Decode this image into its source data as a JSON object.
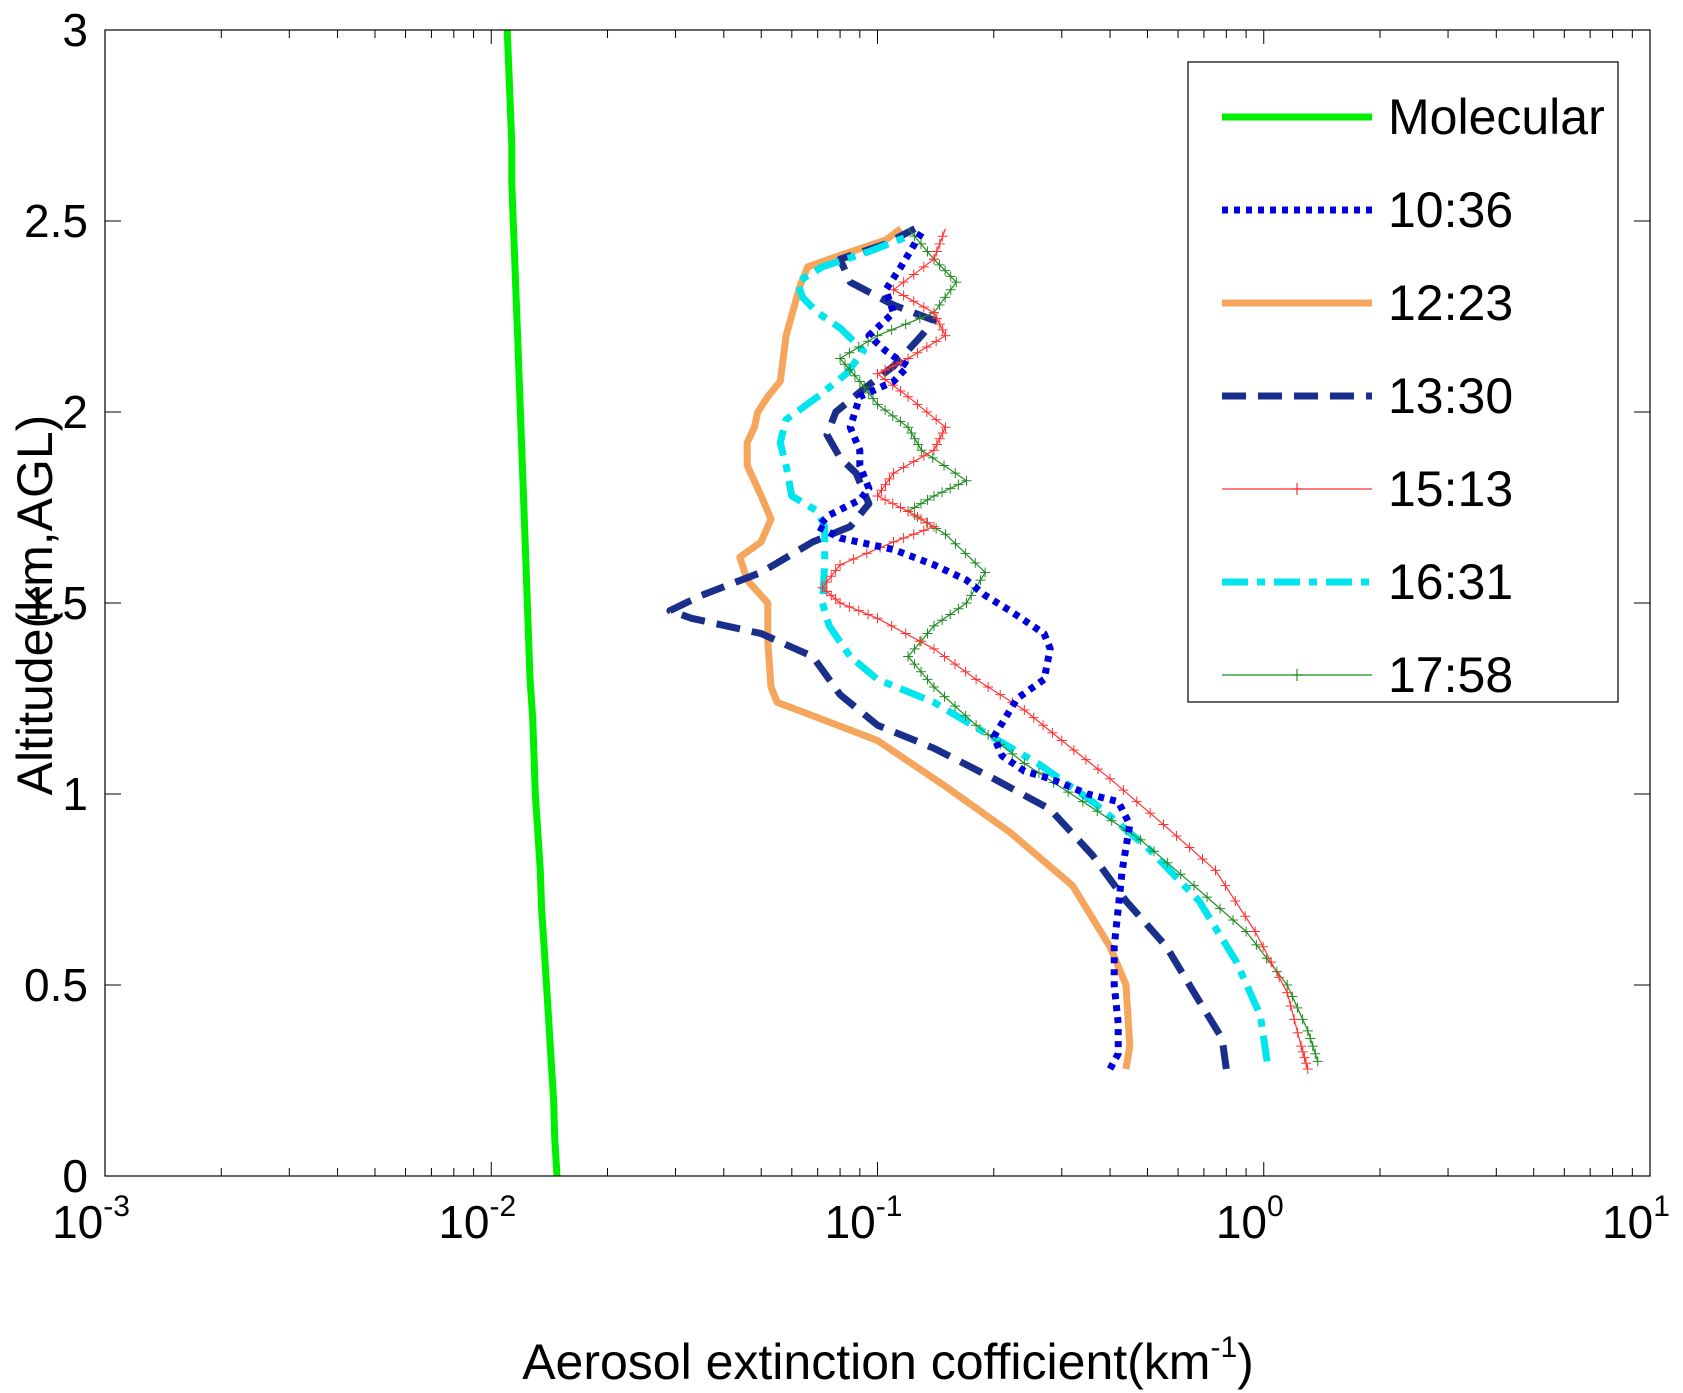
{
  "chart_data": {
    "type": "line",
    "title": "",
    "xlabel": "Aerosol extinction cofficient(km",
    "xlabel_sup": "-1",
    "xlabel_suffix": ")",
    "ylabel": "Altitude(km,AGL)",
    "xscale": "log",
    "xlim": [
      0.001,
      10
    ],
    "ylim": [
      0,
      3
    ],
    "x_tick_labels": [
      {
        "value": 0.001,
        "base": "10",
        "exp": "-3"
      },
      {
        "value": 0.01,
        "base": "10",
        "exp": "-2"
      },
      {
        "value": 0.1,
        "base": "10",
        "exp": "-1"
      },
      {
        "value": 1,
        "base": "10",
        "exp": "0"
      },
      {
        "value": 10,
        "base": "10",
        "exp": "1"
      }
    ],
    "y_tick_labels": [
      {
        "value": 0,
        "label": "0"
      },
      {
        "value": 0.5,
        "label": "0.5"
      },
      {
        "value": 1,
        "label": "1"
      },
      {
        "value": 1.5,
        "label": "1.5"
      },
      {
        "value": 2,
        "label": "2"
      },
      {
        "value": 2.5,
        "label": "2.5"
      },
      {
        "value": 3,
        "label": "3"
      }
    ],
    "grid": false,
    "legend_position": "top-right",
    "series": [
      {
        "name": "Molecular",
        "color": "#00ee00",
        "style": "solid-thick",
        "points": [
          [
            0.0148,
            0.0
          ],
          [
            0.0146,
            0.1
          ],
          [
            0.0145,
            0.2
          ],
          [
            0.0143,
            0.3
          ],
          [
            0.0141,
            0.4
          ],
          [
            0.0139,
            0.5
          ],
          [
            0.0137,
            0.6
          ],
          [
            0.0135,
            0.7
          ],
          [
            0.0134,
            0.8
          ],
          [
            0.0132,
            0.9
          ],
          [
            0.013,
            1.0
          ],
          [
            0.0129,
            1.1
          ],
          [
            0.0128,
            1.2
          ],
          [
            0.0126,
            1.3
          ],
          [
            0.0125,
            1.4
          ],
          [
            0.0124,
            1.5
          ],
          [
            0.0123,
            1.6
          ],
          [
            0.0122,
            1.7
          ],
          [
            0.0121,
            1.8
          ],
          [
            0.012,
            1.9
          ],
          [
            0.0119,
            2.0
          ],
          [
            0.0118,
            2.1
          ],
          [
            0.0117,
            2.2
          ],
          [
            0.0116,
            2.3
          ],
          [
            0.0115,
            2.4
          ],
          [
            0.0114,
            2.5
          ],
          [
            0.0113,
            2.6
          ],
          [
            0.0113,
            2.7
          ],
          [
            0.0112,
            2.8
          ],
          [
            0.0111,
            2.9
          ],
          [
            0.011,
            3.0
          ]
        ]
      },
      {
        "name": "10:36",
        "color": "#0000dd",
        "style": "dotted-thick",
        "points": [
          [
            0.4,
            0.28
          ],
          [
            0.42,
            0.32
          ],
          [
            0.42,
            0.4
          ],
          [
            0.41,
            0.5
          ],
          [
            0.41,
            0.6
          ],
          [
            0.42,
            0.7
          ],
          [
            0.43,
            0.8
          ],
          [
            0.45,
            0.92
          ],
          [
            0.42,
            0.98
          ],
          [
            0.35,
            1.0
          ],
          [
            0.28,
            1.04
          ],
          [
            0.24,
            1.06
          ],
          [
            0.21,
            1.1
          ],
          [
            0.2,
            1.15
          ],
          [
            0.23,
            1.25
          ],
          [
            0.27,
            1.3
          ],
          [
            0.28,
            1.38
          ],
          [
            0.27,
            1.42
          ],
          [
            0.22,
            1.48
          ],
          [
            0.19,
            1.52
          ],
          [
            0.17,
            1.56
          ],
          [
            0.14,
            1.6
          ],
          [
            0.11,
            1.64
          ],
          [
            0.08,
            1.67
          ],
          [
            0.07,
            1.7
          ],
          [
            0.075,
            1.73
          ],
          [
            0.09,
            1.77
          ],
          [
            0.095,
            1.8
          ],
          [
            0.09,
            1.86
          ],
          [
            0.09,
            1.9
          ],
          [
            0.085,
            1.96
          ],
          [
            0.09,
            2.04
          ],
          [
            0.11,
            2.08
          ],
          [
            0.12,
            2.12
          ],
          [
            0.105,
            2.16
          ],
          [
            0.095,
            2.2
          ],
          [
            0.11,
            2.26
          ],
          [
            0.105,
            2.32
          ],
          [
            0.115,
            2.38
          ],
          [
            0.13,
            2.47
          ]
        ]
      },
      {
        "name": "12:23",
        "color": "#f5a55c",
        "style": "solid-thick",
        "points": [
          [
            0.44,
            0.28
          ],
          [
            0.45,
            0.34
          ],
          [
            0.44,
            0.5
          ],
          [
            0.4,
            0.6
          ],
          [
            0.32,
            0.76
          ],
          [
            0.22,
            0.9
          ],
          [
            0.15,
            1.02
          ],
          [
            0.1,
            1.14
          ],
          [
            0.07,
            1.2
          ],
          [
            0.055,
            1.24
          ],
          [
            0.053,
            1.28
          ],
          [
            0.052,
            1.4
          ],
          [
            0.052,
            1.5
          ],
          [
            0.046,
            1.56
          ],
          [
            0.044,
            1.62
          ],
          [
            0.05,
            1.66
          ],
          [
            0.053,
            1.72
          ],
          [
            0.05,
            1.78
          ],
          [
            0.046,
            1.86
          ],
          [
            0.046,
            1.92
          ],
          [
            0.048,
            1.96
          ],
          [
            0.049,
            2.0
          ],
          [
            0.052,
            2.04
          ],
          [
            0.056,
            2.08
          ],
          [
            0.057,
            2.14
          ],
          [
            0.058,
            2.2
          ],
          [
            0.061,
            2.28
          ],
          [
            0.063,
            2.33
          ],
          [
            0.066,
            2.38
          ],
          [
            0.08,
            2.41
          ],
          [
            0.105,
            2.45
          ],
          [
            0.115,
            2.48
          ]
        ]
      },
      {
        "name": "13:30",
        "color": "#1a2e8c",
        "style": "dashed-thick",
        "points": [
          [
            0.8,
            0.28
          ],
          [
            0.78,
            0.36
          ],
          [
            0.66,
            0.48
          ],
          [
            0.56,
            0.6
          ],
          [
            0.44,
            0.72
          ],
          [
            0.36,
            0.84
          ],
          [
            0.28,
            0.96
          ],
          [
            0.2,
            1.04
          ],
          [
            0.14,
            1.12
          ],
          [
            0.1,
            1.18
          ],
          [
            0.08,
            1.26
          ],
          [
            0.068,
            1.36
          ],
          [
            0.05,
            1.42
          ],
          [
            0.033,
            1.46
          ],
          [
            0.029,
            1.48
          ],
          [
            0.035,
            1.52
          ],
          [
            0.05,
            1.58
          ],
          [
            0.068,
            1.66
          ],
          [
            0.085,
            1.7
          ],
          [
            0.095,
            1.76
          ],
          [
            0.088,
            1.84
          ],
          [
            0.08,
            1.88
          ],
          [
            0.074,
            1.94
          ],
          [
            0.078,
            2.0
          ],
          [
            0.092,
            2.06
          ],
          [
            0.11,
            2.12
          ],
          [
            0.13,
            2.2
          ],
          [
            0.14,
            2.24
          ],
          [
            0.11,
            2.28
          ],
          [
            0.085,
            2.34
          ],
          [
            0.08,
            2.4
          ],
          [
            0.105,
            2.44
          ],
          [
            0.125,
            2.48
          ]
        ]
      },
      {
        "name": "15:13",
        "color": "#ff3333",
        "style": "thin-plus",
        "points": [
          [
            1.3,
            0.28
          ],
          [
            1.25,
            0.34
          ],
          [
            1.15,
            0.48
          ],
          [
            0.95,
            0.64
          ],
          [
            0.75,
            0.8
          ],
          [
            0.55,
            0.92
          ],
          [
            0.4,
            1.04
          ],
          [
            0.3,
            1.14
          ],
          [
            0.24,
            1.22
          ],
          [
            0.18,
            1.3
          ],
          [
            0.14,
            1.38
          ],
          [
            0.1,
            1.46
          ],
          [
            0.08,
            1.5
          ],
          [
            0.072,
            1.54
          ],
          [
            0.08,
            1.6
          ],
          [
            0.11,
            1.66
          ],
          [
            0.14,
            1.7
          ],
          [
            0.12,
            1.74
          ],
          [
            0.1,
            1.78
          ],
          [
            0.11,
            1.84
          ],
          [
            0.14,
            1.9
          ],
          [
            0.15,
            1.96
          ],
          [
            0.12,
            2.04
          ],
          [
            0.1,
            2.1
          ],
          [
            0.12,
            2.14
          ],
          [
            0.15,
            2.2
          ],
          [
            0.14,
            2.26
          ],
          [
            0.11,
            2.32
          ],
          [
            0.14,
            2.4
          ],
          [
            0.15,
            2.48
          ]
        ]
      },
      {
        "name": "16:31",
        "color": "#00e5ee",
        "style": "dashdot-thick",
        "points": [
          [
            1.02,
            0.3
          ],
          [
            0.98,
            0.42
          ],
          [
            0.85,
            0.56
          ],
          [
            0.68,
            0.72
          ],
          [
            0.5,
            0.86
          ],
          [
            0.36,
            0.98
          ],
          [
            0.26,
            1.08
          ],
          [
            0.19,
            1.16
          ],
          [
            0.14,
            1.24
          ],
          [
            0.1,
            1.3
          ],
          [
            0.085,
            1.36
          ],
          [
            0.075,
            1.44
          ],
          [
            0.072,
            1.5
          ],
          [
            0.073,
            1.6
          ],
          [
            0.073,
            1.7
          ],
          [
            0.07,
            1.74
          ],
          [
            0.06,
            1.78
          ],
          [
            0.058,
            1.86
          ],
          [
            0.056,
            1.92
          ],
          [
            0.058,
            1.98
          ],
          [
            0.07,
            2.04
          ],
          [
            0.083,
            2.1
          ],
          [
            0.092,
            2.16
          ],
          [
            0.08,
            2.22
          ],
          [
            0.07,
            2.26
          ],
          [
            0.064,
            2.3
          ],
          [
            0.062,
            2.34
          ],
          [
            0.072,
            2.38
          ],
          [
            0.095,
            2.42
          ],
          [
            0.12,
            2.46
          ]
        ]
      },
      {
        "name": "17:58",
        "color": "#228b22",
        "style": "thin-plus",
        "points": [
          [
            1.38,
            0.3
          ],
          [
            1.3,
            0.38
          ],
          [
            1.15,
            0.5
          ],
          [
            0.9,
            0.64
          ],
          [
            0.66,
            0.76
          ],
          [
            0.48,
            0.88
          ],
          [
            0.34,
            0.98
          ],
          [
            0.24,
            1.08
          ],
          [
            0.18,
            1.18
          ],
          [
            0.14,
            1.28
          ],
          [
            0.12,
            1.36
          ],
          [
            0.14,
            1.44
          ],
          [
            0.17,
            1.5
          ],
          [
            0.19,
            1.58
          ],
          [
            0.15,
            1.68
          ],
          [
            0.12,
            1.74
          ],
          [
            0.14,
            1.78
          ],
          [
            0.17,
            1.82
          ],
          [
            0.13,
            1.9
          ],
          [
            0.12,
            1.96
          ],
          [
            0.1,
            2.02
          ],
          [
            0.09,
            2.08
          ],
          [
            0.08,
            2.14
          ],
          [
            0.1,
            2.2
          ],
          [
            0.14,
            2.26
          ],
          [
            0.16,
            2.34
          ],
          [
            0.14,
            2.4
          ],
          [
            0.12,
            2.48
          ]
        ]
      }
    ]
  }
}
